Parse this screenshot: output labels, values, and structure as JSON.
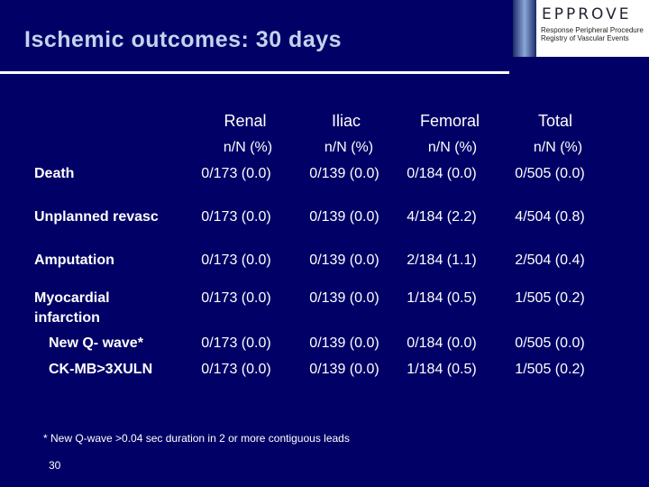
{
  "title": "Ischemic outcomes: 30 days",
  "logo": {
    "name": "EPPROVE",
    "subtitle": "Response Peripheral Procedure Registry of Vascular Events"
  },
  "table": {
    "columns": [
      "Renal",
      "Iliac",
      "Femoral",
      "Total"
    ],
    "subheaders": [
      "n/N (%)",
      "n/N (%)",
      "n/N (%)",
      "n/N (%)"
    ],
    "rows": [
      {
        "label": "Death",
        "values": [
          "0/173 (0.0)",
          "0/139 (0.0)",
          "0/184 (0.0)",
          "0/505 (0.0)"
        ]
      },
      {
        "label": "Unplanned revasc",
        "values": [
          "0/173 (0.0)",
          "0/139 (0.0)",
          "4/184 (2.2)",
          "4/504 (0.8)"
        ]
      },
      {
        "label": "Amputation",
        "values": [
          "0/173 (0.0)",
          "0/139 (0.0)",
          "2/184 (1.1)",
          "2/504 (0.4)"
        ]
      },
      {
        "label": "Myocardial",
        "label2": "infarction",
        "values": [
          "0/173 (0.0)",
          "0/139 (0.0)",
          "1/184 (0.5)",
          "1/505 (0.2)"
        ]
      },
      {
        "label": "New Q- wave*",
        "values": [
          "0/173 (0.0)",
          "0/139 (0.0)",
          "0/184 (0.0)",
          "0/505 (0.0)"
        ]
      },
      {
        "label": "CK-MB>3XULN",
        "values": [
          "0/173 (0.0)",
          "0/139 (0.0)",
          "1/184 (0.5)",
          "1/505 (0.2)"
        ]
      }
    ]
  },
  "footnote": "* New Q-wave >0.04 sec duration in 2 or more contiguous leads",
  "page_number": "30"
}
